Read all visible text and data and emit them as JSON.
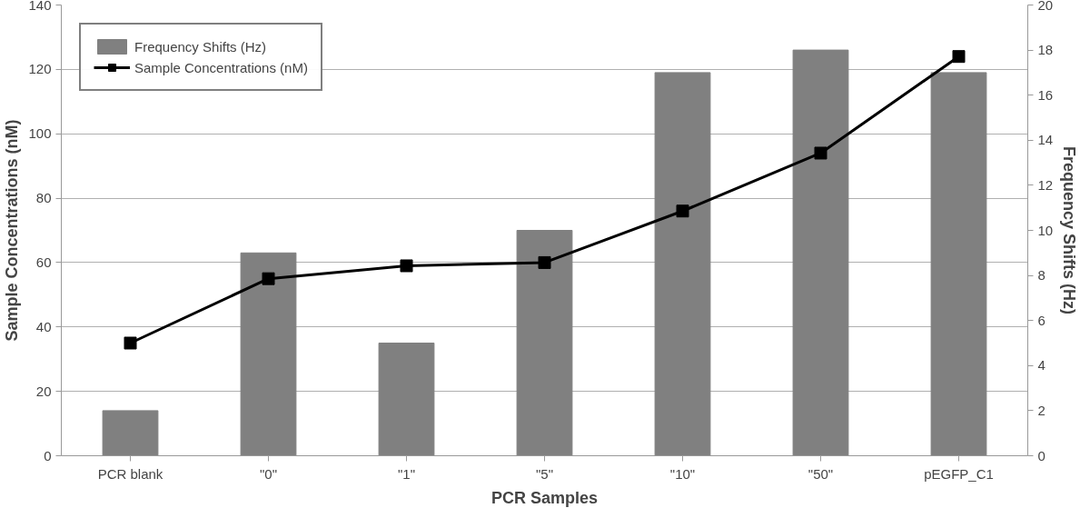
{
  "chart_data": {
    "type": "bar",
    "xlabel": "PCR Samples",
    "ylabel": "Sample Concentrations (nM)",
    "y2label": "Frequency Shifts (Hz)",
    "categories": [
      "PCR blank",
      "\"0\"",
      "\"1\"",
      "\"5\"",
      "\"10\"",
      "\"50\"",
      "pEGFP_C1"
    ],
    "series": [
      {
        "name": "Frequency Shifts (Hz)",
        "axis": "y2",
        "color": "#808080",
        "values": [
          2,
          9,
          5,
          10,
          17,
          18,
          17
        ]
      },
      {
        "name": "Sample Concentrations (nM)",
        "type": "line",
        "axis": "y",
        "color": "#000000",
        "marker": "square",
        "values": [
          35,
          55,
          59,
          60,
          76,
          94,
          124
        ]
      }
    ],
    "ylim": [
      0,
      140
    ],
    "yticks": [
      0,
      20,
      40,
      60,
      80,
      100,
      120,
      140
    ],
    "y2lim": [
      0,
      20
    ],
    "y2ticks": [
      0,
      2,
      4,
      6,
      8,
      10,
      12,
      14,
      16,
      18,
      20
    ],
    "grid": "y",
    "legend": "top left"
  }
}
